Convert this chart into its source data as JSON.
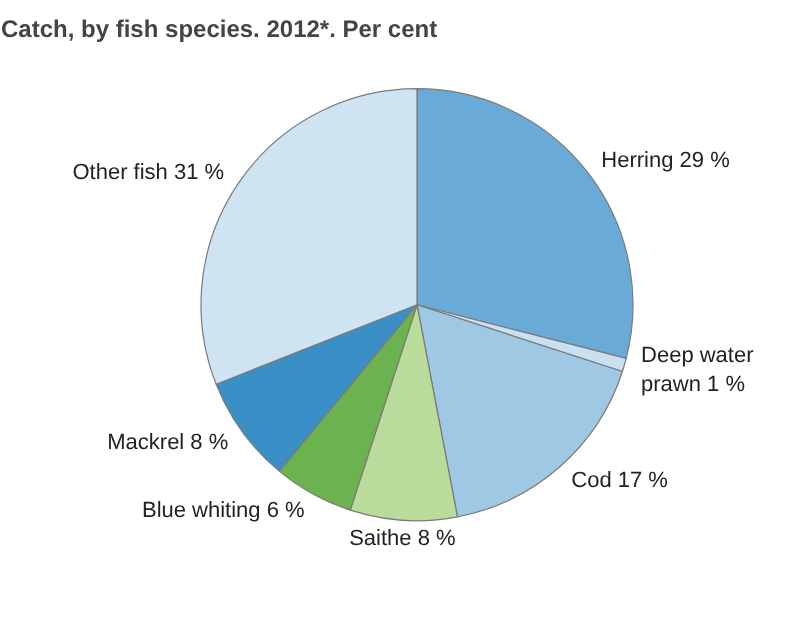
{
  "chart_data": {
    "type": "pie",
    "title": "Catch, by fish species. 2012*. Per cent",
    "categories": [
      "Herring",
      "Deep water prawn",
      "Cod",
      "Saithe",
      "Blue whiting",
      "Mackrel",
      "Other fish"
    ],
    "values": [
      29,
      1,
      17,
      8,
      6,
      8,
      31
    ],
    "value_labels": [
      "29 %",
      "1 %",
      "17 %",
      "8 %",
      "6 %",
      "8 %",
      "31 %"
    ],
    "colors": [
      "#6aaad6",
      "#c9e0f0",
      "#9ec8e4",
      "#b9dc9a",
      "#6cb24e",
      "#3a8fc6",
      "#cfe4f3"
    ]
  }
}
